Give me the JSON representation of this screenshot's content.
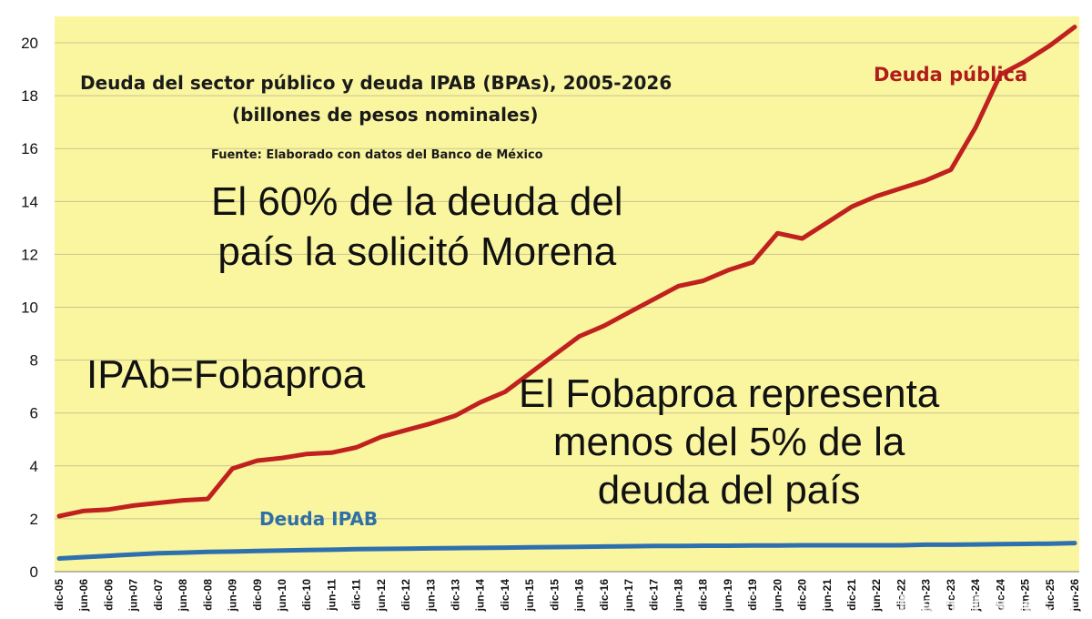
{
  "chart_data": {
    "type": "line",
    "title": "Deuda del sector público y deuda IPAB (BPAs), 2005-2026",
    "subtitle": "(billones de pesos nominales)",
    "source": "Fuente: Elaborado con datos del Banco de México",
    "ylim": [
      0,
      21
    ],
    "yticks": [
      0,
      2,
      4,
      6,
      8,
      10,
      12,
      14,
      16,
      18,
      20
    ],
    "grid": "horizontal",
    "x_tick_labels": [
      "dic-05",
      "jun-06",
      "dic-06",
      "jun-07",
      "dic-07",
      "jun-08",
      "dic-08",
      "jun-09",
      "dic-09",
      "jun-10",
      "dic-10",
      "jun-11",
      "dic-11",
      "jun-12",
      "dic-12",
      "jun-13",
      "dic-13",
      "jun-14",
      "dic-14",
      "jun-15",
      "dic-15",
      "jun-16",
      "dic-16",
      "jun-17",
      "dic-17",
      "jun-18",
      "dic-18",
      "jun-19",
      "dic-19",
      "jun-20",
      "dic-20",
      "jun-21",
      "dic-21",
      "jun-22",
      "dic-22",
      "jun-23",
      "dic-23",
      "jun-24",
      "dic-24",
      "jun-25",
      "dic-25",
      "jun-26"
    ],
    "series": [
      {
        "name": "Deuda pública",
        "color": "#c0211f",
        "values": [
          2.1,
          2.3,
          2.35,
          2.5,
          2.6,
          2.7,
          2.75,
          3.9,
          4.2,
          4.3,
          4.45,
          4.5,
          4.7,
          5.1,
          5.35,
          5.6,
          5.9,
          6.4,
          6.8,
          7.5,
          8.2,
          8.9,
          9.3,
          9.8,
          10.3,
          10.8,
          11.0,
          11.4,
          11.7,
          12.8,
          12.6,
          13.2,
          13.8,
          14.2,
          14.5,
          14.8,
          15.2,
          16.8,
          18.8,
          19.3,
          19.9,
          20.6
        ]
      },
      {
        "name": "Deuda IPAB",
        "color": "#2e6fae",
        "values": [
          0.5,
          0.55,
          0.6,
          0.65,
          0.7,
          0.72,
          0.75,
          0.76,
          0.78,
          0.8,
          0.82,
          0.83,
          0.85,
          0.86,
          0.87,
          0.88,
          0.89,
          0.9,
          0.91,
          0.92,
          0.93,
          0.94,
          0.95,
          0.96,
          0.97,
          0.97,
          0.98,
          0.98,
          0.99,
          0.99,
          1.0,
          1.0,
          1.0,
          1.0,
          1.0,
          1.02,
          1.02,
          1.03,
          1.04,
          1.05,
          1.06,
          1.08
        ]
      }
    ]
  },
  "labels": {
    "series_red": "Deuda pública",
    "series_blue": "Deuda IPAB"
  },
  "overlay": {
    "morena_line1": "El 60% de la deuda del",
    "morena_line2": "país la solicitó Morena",
    "ipab": "IPAb=Fobaproa",
    "fobaproa_line1": "El Fobaproa representa",
    "fobaproa_line2": "menos del 5% de la",
    "fobaproa_line3": "deuda del país"
  },
  "watermark": "MemeMaker.ai",
  "colors": {
    "plot_background": "#faf6a0",
    "grid": "#c9c48e",
    "axis_text": "#111111"
  }
}
